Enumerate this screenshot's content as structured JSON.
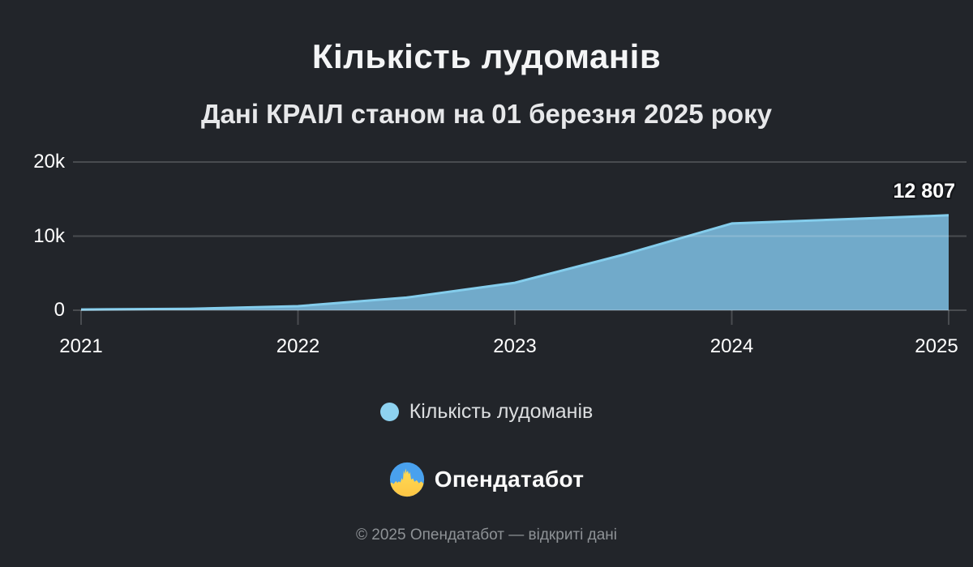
{
  "page": {
    "title": "Кількість лудоманів",
    "subtitle": "Дані КРАІЛ станом на 01 березня 2025 року",
    "brand": "Опендатабот",
    "footer": "© 2025 Опендатабот — відкриті дані"
  },
  "legend": {
    "label": "Кількість лудоманів",
    "dot_color": "#8ed2f0"
  },
  "colors": {
    "background": "#22252a",
    "area_fill": "#71aaca",
    "line": "#84cdec",
    "grid": "rgba(255,255,255,0.18)",
    "flag_blue": "#49a1ee",
    "flag_yellow": "#ffd84e"
  },
  "chart_data": {
    "type": "area",
    "title": "Кількість лудоманів",
    "subtitle": "Дані КРАІЛ станом на 01 березня 2025 року",
    "x": [
      2021,
      2021.5,
      2022,
      2022.5,
      2023,
      2023.5,
      2024,
      2024.5,
      2025
    ],
    "values": [
      100,
      200,
      550,
      1700,
      3700,
      7500,
      11700,
      12250,
      12807
    ],
    "xlim": [
      2021,
      2025
    ],
    "ylim": [
      0,
      20000
    ],
    "xticklabels": [
      "2021",
      "2022",
      "2023",
      "2024",
      "2025"
    ],
    "ytick_values": [
      0,
      10000,
      20000
    ],
    "yticklabels": [
      "0",
      "10k",
      "20k"
    ],
    "last_value": 12807,
    "last_value_label": "12 807",
    "legend_entries": [
      "Кількість лудоманів"
    ],
    "legend_position": "bottom",
    "grid": true
  }
}
